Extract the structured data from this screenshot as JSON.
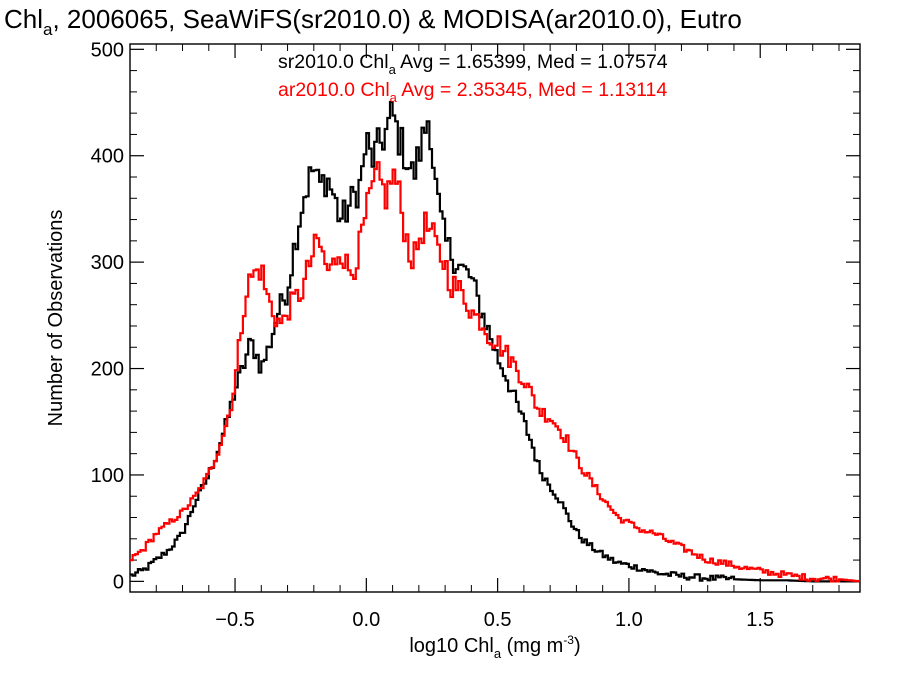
{
  "chart_data": {
    "type": "line",
    "title": {
      "prefix": "Chl",
      "sub": "a",
      "rest": ", 2006065, SeaWiFS(sr2010.0) & MODISA(ar2010.0), Eutro"
    },
    "xlabel": {
      "prefix": "log10 Chl",
      "sub": "a",
      "mid": " (mg m",
      "sup": "-3",
      "end": ")"
    },
    "ylabel": "Number of Observations",
    "xlim": [
      -0.9,
      1.88
    ],
    "ylim": [
      -10,
      505
    ],
    "xticks": [
      {
        "value": -0.5,
        "label": "−0.5"
      },
      {
        "value": 0.0,
        "label": "0.0"
      },
      {
        "value": 0.5,
        "label": "0.5"
      },
      {
        "value": 1.0,
        "label": "1.0"
      },
      {
        "value": 1.5,
        "label": "1.5"
      }
    ],
    "yticks": [
      {
        "value": 0,
        "label": "0"
      },
      {
        "value": 100,
        "label": "100"
      },
      {
        "value": 200,
        "label": "200"
      },
      {
        "value": 300,
        "label": "300"
      },
      {
        "value": 400,
        "label": "400"
      },
      {
        "value": 500,
        "label": "500"
      }
    ],
    "grid": false,
    "legend_position": "top",
    "series": [
      {
        "name": "sr2010.0",
        "color": "#000000",
        "legend": {
          "prefix": "sr2010.0 Chl",
          "sub": "a",
          "stats": " Avg = 1.65399, Med = 1.07574"
        },
        "points": [
          [
            -0.9,
            5
          ],
          [
            -0.85,
            10
          ],
          [
            -0.8,
            20
          ],
          [
            -0.75,
            30
          ],
          [
            -0.7,
            45
          ],
          [
            -0.65,
            75
          ],
          [
            -0.6,
            100
          ],
          [
            -0.57,
            120
          ],
          [
            -0.53,
            150
          ],
          [
            -0.5,
            180
          ],
          [
            -0.47,
            200
          ],
          [
            -0.44,
            225
          ],
          [
            -0.42,
            215
          ],
          [
            -0.4,
            200
          ],
          [
            -0.37,
            220
          ],
          [
            -0.34,
            250
          ],
          [
            -0.3,
            275
          ],
          [
            -0.27,
            320
          ],
          [
            -0.24,
            360
          ],
          [
            -0.22,
            375
          ],
          [
            -0.2,
            390
          ],
          [
            -0.18,
            370
          ],
          [
            -0.15,
            380
          ],
          [
            -0.12,
            360
          ],
          [
            -0.1,
            340
          ],
          [
            -0.08,
            345
          ],
          [
            -0.05,
            360
          ],
          [
            -0.02,
            375
          ],
          [
            0.0,
            415
          ],
          [
            0.02,
            395
          ],
          [
            0.05,
            410
          ],
          [
            0.08,
            425
          ],
          [
            0.1,
            440
          ],
          [
            0.12,
            420
          ],
          [
            0.15,
            400
          ],
          [
            0.18,
            380
          ],
          [
            0.2,
            400
          ],
          [
            0.22,
            420
          ],
          [
            0.24,
            440
          ],
          [
            0.26,
            380
          ],
          [
            0.28,
            345
          ],
          [
            0.3,
            320
          ],
          [
            0.33,
            305
          ],
          [
            0.36,
            295
          ],
          [
            0.4,
            285
          ],
          [
            0.43,
            260
          ],
          [
            0.46,
            240
          ],
          [
            0.5,
            210
          ],
          [
            0.53,
            195
          ],
          [
            0.56,
            175
          ],
          [
            0.6,
            150
          ],
          [
            0.63,
            130
          ],
          [
            0.66,
            105
          ],
          [
            0.7,
            90
          ],
          [
            0.74,
            75
          ],
          [
            0.78,
            55
          ],
          [
            0.82,
            40
          ],
          [
            0.86,
            32
          ],
          [
            0.9,
            25
          ],
          [
            0.95,
            18
          ],
          [
            1.0,
            15
          ],
          [
            1.05,
            12
          ],
          [
            1.1,
            8
          ],
          [
            1.2,
            5
          ],
          [
            1.3,
            3
          ],
          [
            1.4,
            2
          ],
          [
            1.5,
            1
          ],
          [
            1.6,
            1
          ],
          [
            1.7,
            0
          ],
          [
            1.88,
            0
          ]
        ]
      },
      {
        "name": "ar2010.0",
        "color": "#ff0000",
        "legend": {
          "prefix": "ar2010.0 Chl",
          "sub": "a",
          "stats": " Avg = 2.35345, Med = 1.13114"
        },
        "points": [
          [
            -0.9,
            20
          ],
          [
            -0.85,
            30
          ],
          [
            -0.8,
            45
          ],
          [
            -0.75,
            55
          ],
          [
            -0.7,
            65
          ],
          [
            -0.65,
            80
          ],
          [
            -0.6,
            100
          ],
          [
            -0.57,
            120
          ],
          [
            -0.53,
            150
          ],
          [
            -0.5,
            185
          ],
          [
            -0.48,
            230
          ],
          [
            -0.46,
            270
          ],
          [
            -0.44,
            285
          ],
          [
            -0.42,
            290
          ],
          [
            -0.4,
            295
          ],
          [
            -0.38,
            270
          ],
          [
            -0.35,
            250
          ],
          [
            -0.32,
            240
          ],
          [
            -0.3,
            255
          ],
          [
            -0.27,
            265
          ],
          [
            -0.24,
            275
          ],
          [
            -0.22,
            295
          ],
          [
            -0.2,
            310
          ],
          [
            -0.18,
            320
          ],
          [
            -0.16,
            300
          ],
          [
            -0.14,
            290
          ],
          [
            -0.12,
            300
          ],
          [
            -0.1,
            315
          ],
          [
            -0.08,
            300
          ],
          [
            -0.06,
            290
          ],
          [
            -0.04,
            300
          ],
          [
            -0.02,
            320
          ],
          [
            0.0,
            345
          ],
          [
            0.02,
            365
          ],
          [
            0.04,
            380
          ],
          [
            0.06,
            370
          ],
          [
            0.08,
            360
          ],
          [
            0.1,
            385
          ],
          [
            0.12,
            370
          ],
          [
            0.14,
            340
          ],
          [
            0.16,
            315
          ],
          [
            0.18,
            300
          ],
          [
            0.2,
            320
          ],
          [
            0.22,
            335
          ],
          [
            0.24,
            330
          ],
          [
            0.26,
            320
          ],
          [
            0.28,
            305
          ],
          [
            0.3,
            300
          ],
          [
            0.32,
            280
          ],
          [
            0.35,
            275
          ],
          [
            0.38,
            265
          ],
          [
            0.41,
            250
          ],
          [
            0.44,
            245
          ],
          [
            0.47,
            230
          ],
          [
            0.5,
            225
          ],
          [
            0.53,
            215
          ],
          [
            0.56,
            205
          ],
          [
            0.6,
            190
          ],
          [
            0.63,
            175
          ],
          [
            0.66,
            160
          ],
          [
            0.7,
            155
          ],
          [
            0.73,
            145
          ],
          [
            0.76,
            135
          ],
          [
            0.8,
            115
          ],
          [
            0.84,
            100
          ],
          [
            0.88,
            85
          ],
          [
            0.92,
            72
          ],
          [
            0.96,
            60
          ],
          [
            1.0,
            55
          ],
          [
            1.05,
            48
          ],
          [
            1.1,
            45
          ],
          [
            1.15,
            38
          ],
          [
            1.2,
            32
          ],
          [
            1.25,
            26
          ],
          [
            1.3,
            20
          ],
          [
            1.35,
            18
          ],
          [
            1.4,
            15
          ],
          [
            1.45,
            12
          ],
          [
            1.5,
            10
          ],
          [
            1.55,
            8
          ],
          [
            1.6,
            6
          ],
          [
            1.7,
            3
          ],
          [
            1.8,
            2
          ],
          [
            1.88,
            0
          ]
        ]
      }
    ]
  }
}
